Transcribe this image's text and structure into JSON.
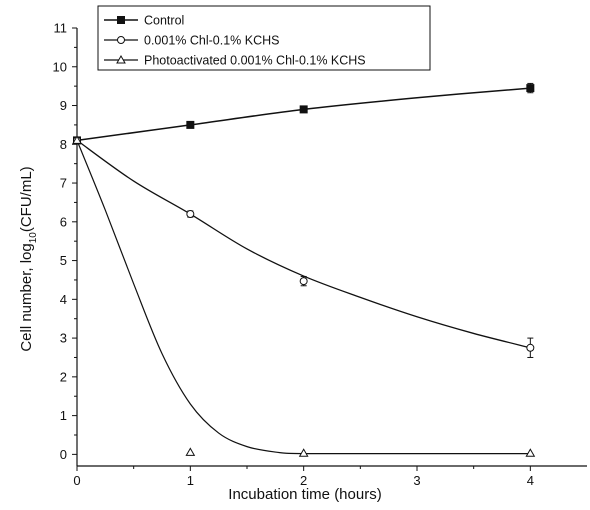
{
  "chart_data": {
    "type": "line",
    "title": "",
    "xlabel": "Incubation time (hours)",
    "ylabel": {
      "pre": "Cell number, log",
      "sub": "10",
      "post": "(CFU/mL)"
    },
    "xlim": [
      0,
      4.5
    ],
    "ylim": [
      -0.3,
      11
    ],
    "xticks": [
      0,
      1,
      2,
      3,
      4
    ],
    "yticks": [
      0,
      1,
      2,
      3,
      4,
      5,
      6,
      7,
      8,
      9,
      10,
      11
    ],
    "grid": false,
    "legend_position": "top-left",
    "series": [
      {
        "name": "Control",
        "marker": "filled-square",
        "color": "#111111",
        "points": [
          {
            "x": 0,
            "y": 8.1,
            "err": 0.08
          },
          {
            "x": 1,
            "y": 8.5,
            "err": 0.05
          },
          {
            "x": 2,
            "y": 8.9,
            "err": 0.05
          },
          {
            "x": 4,
            "y": 9.45,
            "err": 0.12
          }
        ],
        "curve": [
          [
            0,
            8.1
          ],
          [
            1,
            8.5
          ],
          [
            2,
            8.9
          ],
          [
            3,
            9.2
          ],
          [
            4,
            9.45
          ]
        ]
      },
      {
        "name": "0.001% Chl-0.1% KCHS",
        "marker": "open-circle",
        "color": "#111111",
        "points": [
          {
            "x": 0,
            "y": 8.1,
            "err": 0.08
          },
          {
            "x": 1,
            "y": 6.2,
            "err": 0.08
          },
          {
            "x": 2,
            "y": 4.47,
            "err": 0.12
          },
          {
            "x": 4,
            "y": 2.75,
            "err": 0.25
          }
        ],
        "curve": [
          [
            0,
            8.1
          ],
          [
            0.5,
            7.05
          ],
          [
            1,
            6.2
          ],
          [
            1.5,
            5.3
          ],
          [
            2,
            4.6
          ],
          [
            2.5,
            4.05
          ],
          [
            3,
            3.55
          ],
          [
            3.5,
            3.12
          ],
          [
            4,
            2.75
          ]
        ]
      },
      {
        "name": "Photoactivated 0.001% Chl-0.1% KCHS",
        "marker": "open-triangle",
        "color": "#111111",
        "points": [
          {
            "x": 0,
            "y": 8.1,
            "err": 0.08
          },
          {
            "x": 1,
            "y": 0.05,
            "err": 0
          },
          {
            "x": 2,
            "y": 0.03,
            "err": 0
          },
          {
            "x": 4,
            "y": 0.03,
            "err": 0
          }
        ],
        "curve": [
          [
            0,
            8.1
          ],
          [
            0.25,
            6.3
          ],
          [
            0.5,
            4.4
          ],
          [
            0.75,
            2.6
          ],
          [
            1,
            1.3
          ],
          [
            1.25,
            0.55
          ],
          [
            1.5,
            0.2
          ],
          [
            1.75,
            0.06
          ],
          [
            2,
            0.02
          ],
          [
            3,
            0.02
          ],
          [
            4,
            0.02
          ]
        ]
      }
    ]
  }
}
